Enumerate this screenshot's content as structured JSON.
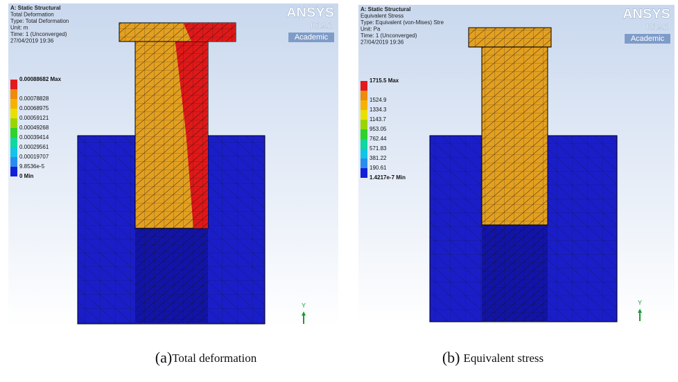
{
  "panels": [
    {
      "header": [
        "A: Static Structural",
        "Total Deformation",
        "Type: Total Deformation",
        "Unit: m",
        "Time: 1 (Unconverged)",
        "27/04/2019 19:36"
      ],
      "legend": [
        "0.00088682 Max",
        "0.00078828",
        "0.00068975",
        "0.00059121",
        "0.00049268",
        "0.00039414",
        "0.00029561",
        "0.00019707",
        "9.8536e-5",
        "0 Min"
      ],
      "logo": "ANSYS",
      "version": "R19.1",
      "edition": "Academic",
      "axis": "Y",
      "caption": {
        "label": "(a)",
        "text": "Total deformation"
      }
    },
    {
      "header": [
        "A: Static Structural",
        "Equivalent Stress",
        "Type: Equivalent (von-Mises) Stre",
        "Unit: Pa",
        "Time: 1 (Unconverged)",
        "27/04/2019 19:36"
      ],
      "legend": [
        "1715.5 Max",
        "1524.9",
        "1334.3",
        "1143.7",
        "953.05",
        "762.44",
        "571.83",
        "381.22",
        "190.61",
        "1.4217e-7 Min"
      ],
      "logo": "ANSYS",
      "version": "R19.1",
      "edition": "Academic",
      "axis": "Y",
      "caption": {
        "label": "(b)",
        "text": "Equivalent stress"
      }
    }
  ]
}
